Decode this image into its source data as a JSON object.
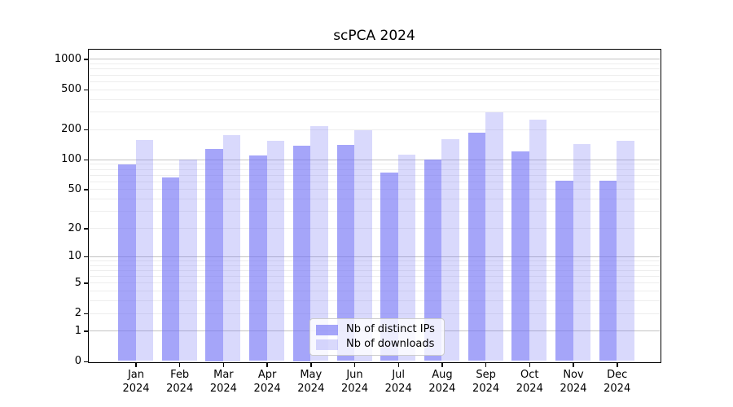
{
  "chart_data": {
    "type": "bar",
    "title": "scPCA 2024",
    "xlabel": "",
    "ylabel": "",
    "yscale": "log1p",
    "ylim": [
      0,
      1100
    ],
    "ytick_labels": [
      0,
      1,
      2,
      5,
      10,
      20,
      50,
      100,
      200,
      500,
      1000
    ],
    "grid": {
      "major_at": [
        1,
        10,
        100,
        1000
      ],
      "minor_decades": [
        1,
        10,
        100
      ],
      "major_color": "#c3c3c3",
      "minor_color": "#ededed"
    },
    "categories": [
      {
        "month": "Jan",
        "year": "2024"
      },
      {
        "month": "Feb",
        "year": "2024"
      },
      {
        "month": "Mar",
        "year": "2024"
      },
      {
        "month": "Apr",
        "year": "2024"
      },
      {
        "month": "May",
        "year": "2024"
      },
      {
        "month": "Jun",
        "year": "2024"
      },
      {
        "month": "Jul",
        "year": "2024"
      },
      {
        "month": "Aug",
        "year": "2024"
      },
      {
        "month": "Sep",
        "year": "2024"
      },
      {
        "month": "Oct",
        "year": "2024"
      },
      {
        "month": "Nov",
        "year": "2024"
      },
      {
        "month": "Dec",
        "year": "2024"
      }
    ],
    "series": [
      {
        "name": "Nb of distinct IPs",
        "color": "rgba(113,113,245,0.63)",
        "values": [
          88,
          66,
          128,
          110,
          138,
          140,
          74,
          99,
          184,
          119,
          61,
          61
        ]
      },
      {
        "name": "Nb of downloads",
        "color": "rgba(113,113,245,0.27)",
        "values": [
          155,
          100,
          176,
          152,
          215,
          197,
          112,
          160,
          296,
          250,
          141,
          154
        ]
      }
    ],
    "legend": {
      "position": "lower-center",
      "background": "rgba(255,255,255,0.8)",
      "border": "#cccccc"
    }
  }
}
